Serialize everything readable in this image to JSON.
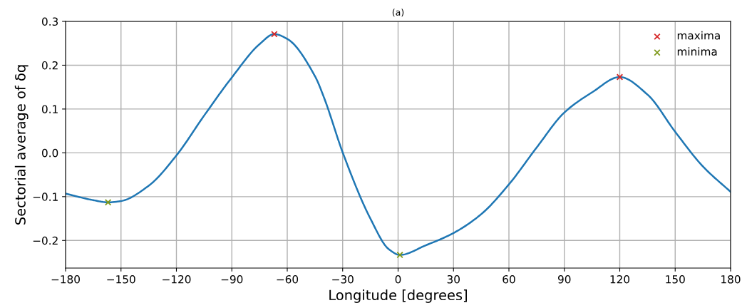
{
  "chart_data": {
    "type": "line",
    "title": "(a)",
    "xlabel": "Longitude [degrees]",
    "ylabel": "Sectorial average of δq",
    "xlim": [
      -180,
      180
    ],
    "ylim": [
      -0.263,
      0.3
    ],
    "xticks": [
      {
        "value": -180,
        "label": "−180"
      },
      {
        "value": -150,
        "label": "−150"
      },
      {
        "value": -120,
        "label": "−120"
      },
      {
        "value": -90,
        "label": "−90"
      },
      {
        "value": -60,
        "label": "−60"
      },
      {
        "value": -30,
        "label": "−30"
      },
      0,
      30,
      60,
      90,
      120,
      150,
      180
    ],
    "yticks": [
      {
        "value": -0.2,
        "label": "−0.2"
      },
      {
        "value": -0.1,
        "label": "−0.1"
      },
      {
        "value": 0,
        "label": "0.0"
      },
      0.1,
      0.2,
      0.3
    ],
    "grid": true,
    "legend": "top right",
    "series": [
      {
        "color": "#1f77b4",
        "marker": "none",
        "line_style": "solid",
        "x": [
          -180,
          -165,
          -157,
          -150,
          -135,
          -120,
          -105,
          -90,
          -75,
          -67,
          -60,
          -45,
          -40,
          -30,
          -15,
          -5,
          1,
          15,
          30,
          45,
          60,
          75,
          90,
          105,
          120,
          135,
          150,
          165,
          180
        ],
        "values": [
          -0.093,
          -0.108,
          -0.113,
          -0.11,
          -0.075,
          -0.006,
          0.085,
          0.172,
          0.248,
          0.271,
          0.26,
          0.175,
          0.125,
          0.001,
          -0.15,
          -0.22,
          -0.233,
          -0.211,
          -0.183,
          -0.14,
          -0.072,
          0.012,
          0.092,
          0.138,
          0.173,
          0.133,
          0.048,
          -0.031,
          -0.089
        ]
      },
      {
        "type": "scatter",
        "name": "maxima",
        "color": "#d62728",
        "marker": "cross",
        "x": [
          -67,
          120
        ],
        "values": [
          0.271,
          0.173
        ]
      },
      {
        "type": "scatter",
        "name": "minima",
        "color": "#7f9a1c",
        "marker": "cross",
        "x": [
          -157,
          1
        ],
        "values": [
          -0.113,
          -0.233
        ]
      }
    ]
  }
}
